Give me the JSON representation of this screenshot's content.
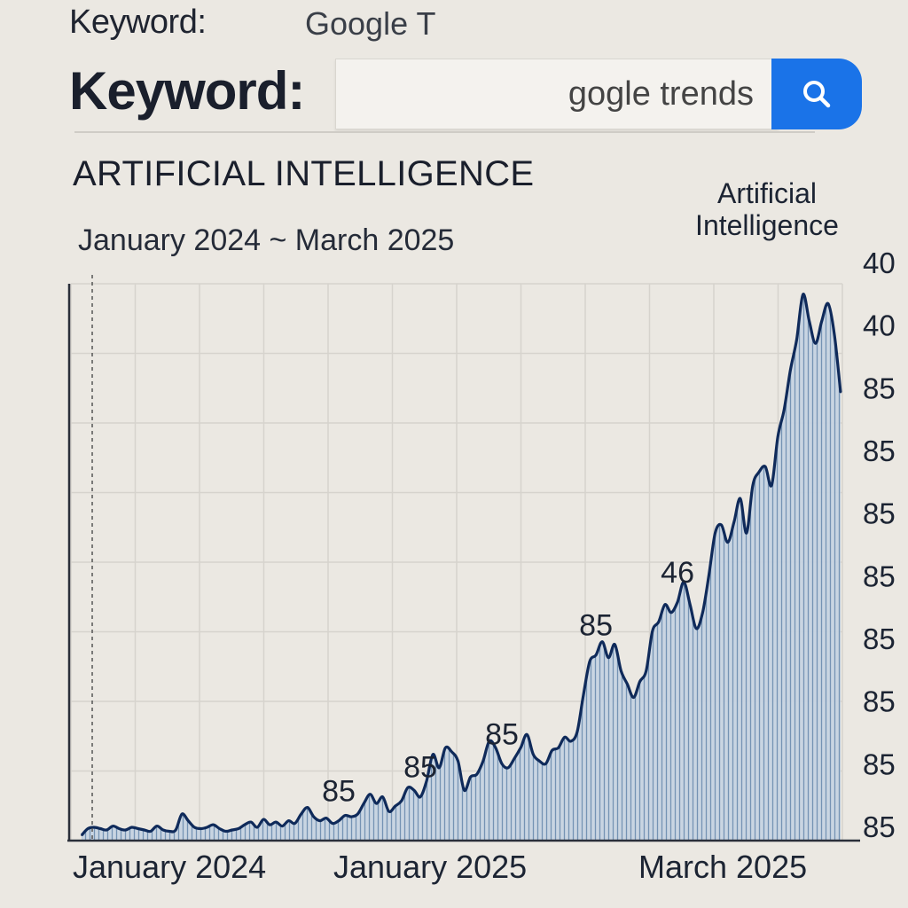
{
  "header": {
    "top_label": "Keyword:",
    "top_value": "Google T",
    "keyword_label": "Keyword:",
    "search_value": "gogle trends",
    "search_icon": "search-icon"
  },
  "section_title": "ARTIFICIAL INTELLIGENCE",
  "date_range": "January 2024 ~ March 2025",
  "legend": [
    "Artificial",
    "Intelligence"
  ],
  "colors": {
    "accent": "#1a73e8",
    "line": "#0f2a5a",
    "fill": "#9fb6cf"
  },
  "chart_data": {
    "type": "area",
    "title": "ARTIFICIAL INTELLIGENCE",
    "subtitle": "January 2024 ~ March 2025",
    "series": [
      {
        "name": "Artificial Intelligence",
        "values": [
          4,
          9,
          10,
          9,
          8,
          11,
          9,
          8,
          10,
          9,
          8,
          7,
          11,
          8,
          7,
          8,
          20,
          15,
          10,
          9,
          10,
          12,
          9,
          7,
          8,
          9,
          12,
          14,
          10,
          16,
          12,
          14,
          11,
          15,
          13,
          20,
          25,
          18,
          15,
          17,
          13,
          15,
          19,
          18,
          20,
          28,
          35,
          28,
          33,
          22,
          26,
          30,
          40,
          38,
          33,
          45,
          65,
          55,
          70,
          67,
          60,
          38,
          48,
          50,
          60,
          75,
          70,
          58,
          55,
          62,
          70,
          80,
          65,
          60,
          58,
          68,
          70,
          78,
          75,
          82,
          110,
          135,
          140,
          150,
          138,
          148,
          128,
          118,
          108,
          120,
          128,
          158,
          165,
          178,
          172,
          180,
          195,
          178,
          160,
          172,
          200,
          232,
          238,
          225,
          240,
          258,
          232,
          268,
          278,
          282,
          268,
          305,
          325,
          355,
          378,
          412,
          392,
          375,
          392,
          405,
          382,
          338
        ]
      }
    ],
    "x_tick_labels": [
      "January 2024",
      "January 2025",
      "March 2025"
    ],
    "y_tick_labels": [
      "40",
      "40",
      "85",
      "85",
      "85",
      "85",
      "85",
      "85",
      "85",
      "85"
    ],
    "annotations": [
      {
        "text": "85",
        "index": 41
      },
      {
        "text": "85",
        "index": 54
      },
      {
        "text": "85",
        "index": 67
      },
      {
        "text": "85",
        "index": 82
      },
      {
        "text": "46",
        "index": 95
      }
    ],
    "ylim": [
      0,
      420
    ],
    "grid": true,
    "legend_position": "top-right"
  }
}
